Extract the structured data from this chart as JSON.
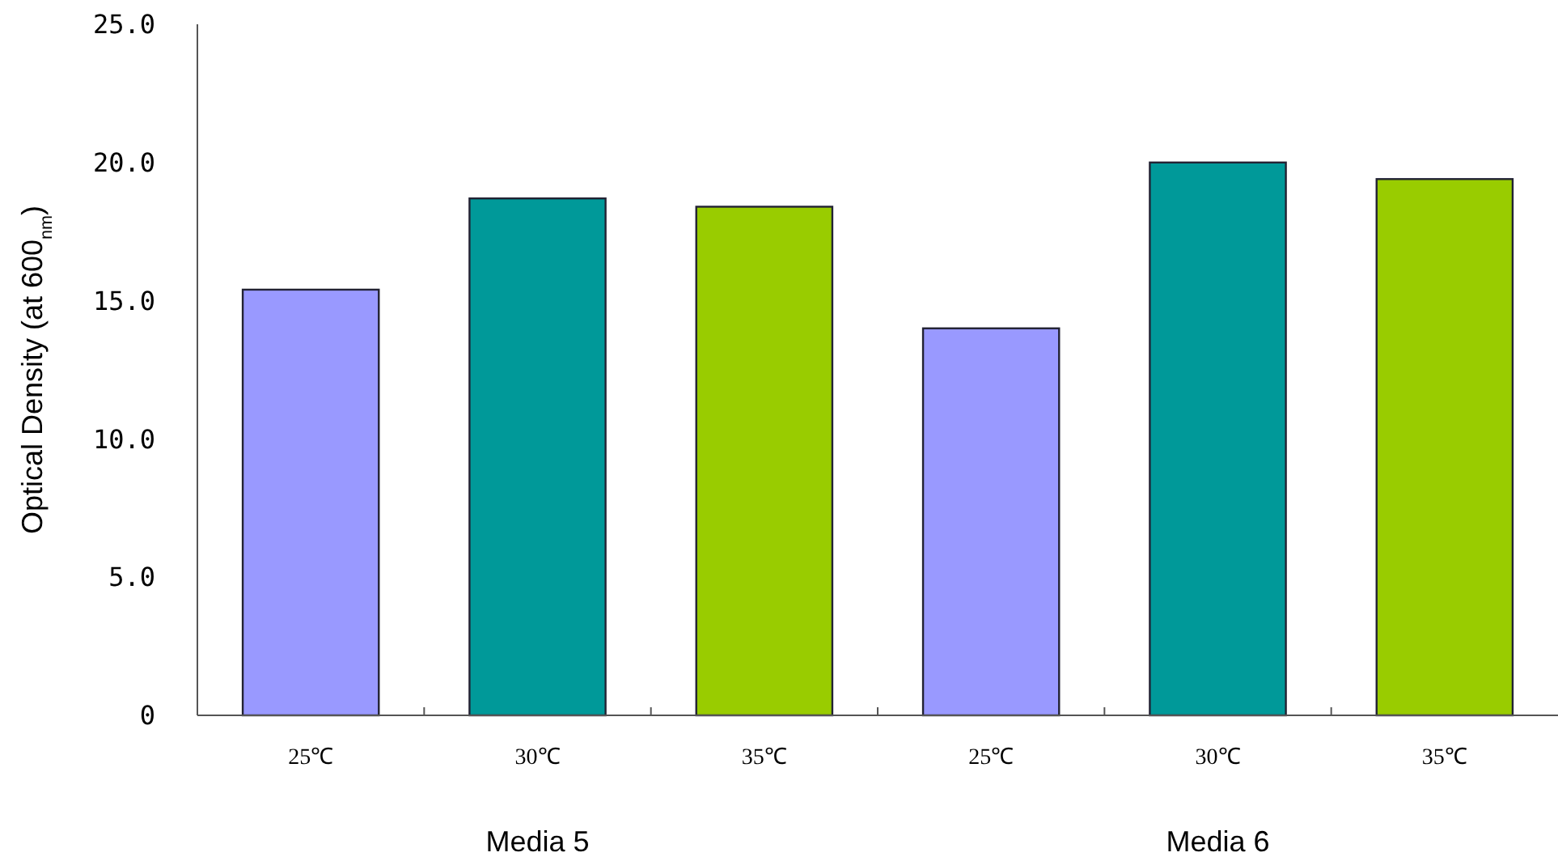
{
  "chart_data": {
    "type": "bar",
    "ylabel": "Optical Density (at 600$_{nm}$)",
    "categories": [
      "25℃",
      "30℃",
      "35℃",
      "25℃",
      "30℃",
      "35℃"
    ],
    "values": [
      15.4,
      18.7,
      18.4,
      14.0,
      20.0,
      19.4
    ],
    "colors": [
      "#9999ff",
      "#009999",
      "#99cc00",
      "#9999ff",
      "#009999",
      "#99cc00"
    ],
    "ylim": [
      0,
      25
    ],
    "yticks": [
      0,
      {
        "value": 5,
        "label": "5.0"
      },
      {
        "value": 10,
        "label": "10.0"
      },
      {
        "value": 15,
        "label": "15.0"
      },
      {
        "value": 20,
        "label": "20.0"
      },
      {
        "value": 25,
        "label": "25.0"
      }
    ],
    "annotations": [
      "Media 5",
      "Media 6"
    ],
    "grid": false
  }
}
